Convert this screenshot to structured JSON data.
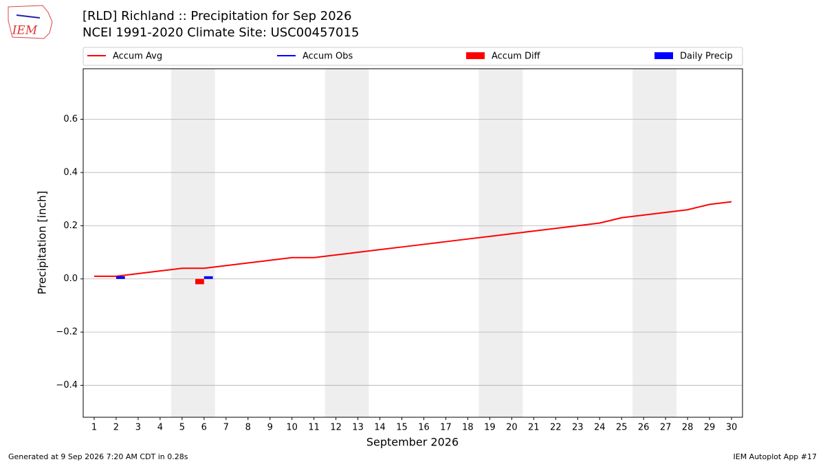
{
  "chart_data": {
    "type": "line",
    "title": "[RLD] Richland :: Precipitation for Sep 2026",
    "subtitle": "NCEI 1991-2020 Climate Site: USC00457015",
    "logo_text": "IEM",
    "xlabel": "September 2026",
    "ylabel": "Precipitation [inch]",
    "footer_left": "Generated at 9 Sep 2026 7:20 AM CDT in 0.28s",
    "footer_right": "IEM Autoplot App #17",
    "x": [
      1,
      2,
      3,
      4,
      5,
      6,
      7,
      8,
      9,
      10,
      11,
      12,
      13,
      14,
      15,
      16,
      17,
      18,
      19,
      20,
      21,
      22,
      23,
      24,
      25,
      26,
      27,
      28,
      29,
      30
    ],
    "xticks": [
      1,
      2,
      3,
      4,
      5,
      6,
      7,
      8,
      9,
      10,
      11,
      12,
      13,
      14,
      15,
      16,
      17,
      18,
      19,
      20,
      21,
      22,
      23,
      24,
      25,
      26,
      27,
      28,
      29,
      30
    ],
    "xlim": [
      0.5,
      30.5
    ],
    "ylim": [
      -0.52,
      0.79
    ],
    "yticks": [
      {
        "value": -0.4,
        "label": "−0.4"
      },
      {
        "value": -0.2,
        "label": "−0.2"
      },
      {
        "value": 0,
        "label": "0.0"
      },
      0.2,
      0.4,
      0.6
    ],
    "grid": true,
    "shaded_ranges": [
      [
        4.5,
        6.5
      ],
      [
        11.5,
        13.5
      ],
      [
        18.5,
        20.5
      ],
      [
        25.5,
        27.5
      ]
    ],
    "shade_color": "#eeeeee",
    "series": [
      {
        "name": "Accum Avg",
        "kind": "line",
        "color": "#ff0000",
        "values": [
          0.01,
          0.01,
          0.02,
          0.03,
          0.04,
          0.04,
          0.05,
          0.06,
          0.07,
          0.08,
          0.08,
          0.09,
          0.1,
          0.11,
          0.12,
          0.13,
          0.14,
          0.15,
          0.16,
          0.17,
          0.18,
          0.19,
          0.2,
          0.21,
          0.23,
          0.24,
          0.25,
          0.26,
          0.28,
          0.29
        ]
      },
      {
        "name": "Accum Obs",
        "kind": "line",
        "color": "#0000ff",
        "values": [
          null,
          null,
          null,
          null,
          null,
          null,
          null,
          null,
          null,
          null,
          null,
          null,
          null,
          null,
          null,
          null,
          null,
          null,
          null,
          null,
          null,
          null,
          null,
          null,
          null,
          null,
          null,
          null,
          null,
          null
        ]
      },
      {
        "name": "Accum Diff",
        "kind": "bar",
        "color": "#ff0000",
        "values": [
          null,
          null,
          null,
          null,
          null,
          -0.02,
          null,
          null,
          null,
          null,
          null,
          null,
          null,
          null,
          null,
          null,
          null,
          null,
          null,
          null,
          null,
          null,
          null,
          null,
          null,
          null,
          null,
          null,
          null,
          null
        ]
      },
      {
        "name": "Daily Precip",
        "kind": "bar",
        "color": "#0000ff",
        "values": [
          null,
          0.01,
          null,
          null,
          null,
          0.01,
          null,
          null,
          null,
          null,
          null,
          null,
          null,
          null,
          null,
          null,
          null,
          null,
          null,
          null,
          null,
          null,
          null,
          null,
          null,
          null,
          null,
          null,
          null,
          null
        ]
      }
    ]
  }
}
